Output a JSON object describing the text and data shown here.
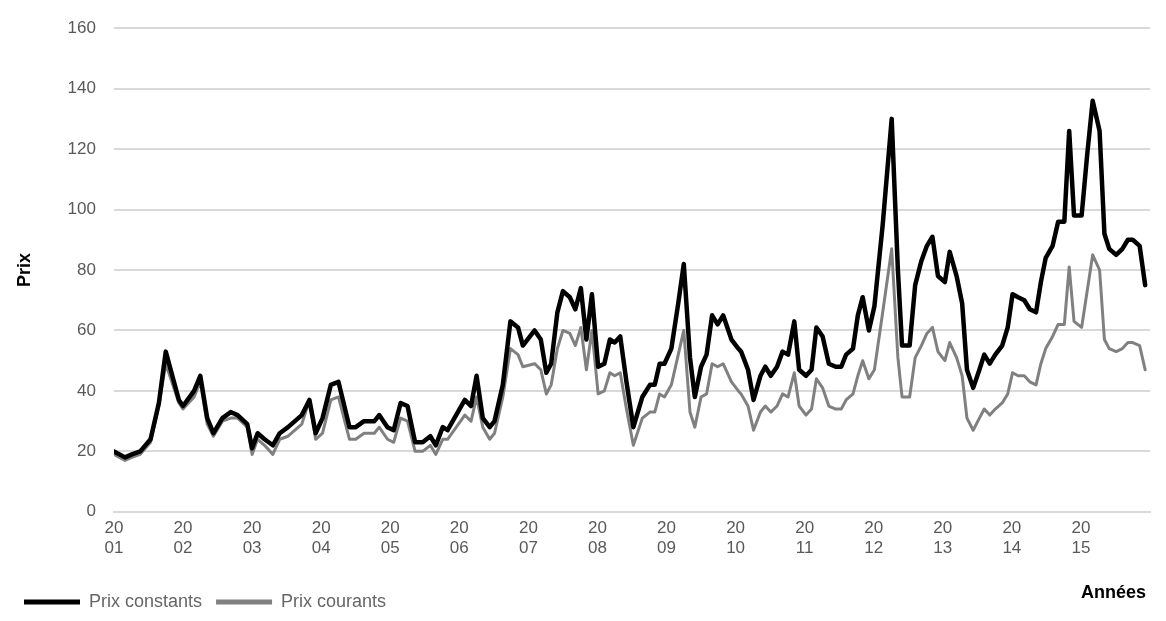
{
  "chart_data": {
    "type": "line",
    "xlabel": "Années",
    "ylabel": "Prix",
    "legend": "bottom",
    "grid": "y",
    "line_style": "solid",
    "x": [
      2001.0,
      2001.16,
      2001.26,
      2001.38,
      2001.53,
      2001.65,
      2001.75,
      2001.94,
      2002.0,
      2002.16,
      2002.25,
      2002.35,
      2002.44,
      2002.57,
      2002.69,
      2002.79,
      2002.93,
      2003.0,
      2003.08,
      2003.18,
      2003.3,
      2003.4,
      2003.52,
      2003.72,
      2003.83,
      2003.92,
      2004.02,
      2004.14,
      2004.25,
      2004.41,
      2004.5,
      2004.62,
      2004.77,
      2004.84,
      2004.96,
      2005.05,
      2005.15,
      2005.25,
      2005.36,
      2005.47,
      2005.58,
      2005.66,
      2005.76,
      2005.83,
      2006.08,
      2006.17,
      2006.25,
      2006.34,
      2006.44,
      2006.51,
      2006.63,
      2006.74,
      2006.85,
      2006.92,
      2007.09,
      2007.18,
      2007.26,
      2007.33,
      2007.42,
      2007.5,
      2007.6,
      2007.68,
      2007.76,
      2007.84,
      2007.92,
      2008.01,
      2008.1,
      2008.18,
      2008.25,
      2008.33,
      2008.42,
      2008.52,
      2008.65,
      2008.76,
      2008.83,
      2008.9,
      2008.97,
      2009.07,
      2009.17,
      2009.25,
      2009.34,
      2009.41,
      2009.5,
      2009.58,
      2009.66,
      2009.74,
      2009.82,
      2009.94,
      2010.04,
      2010.08,
      2010.18,
      2010.26,
      2010.36,
      2010.43,
      2010.51,
      2010.6,
      2010.68,
      2010.76,
      2010.85,
      2010.92,
      2011.02,
      2011.1,
      2011.17,
      2011.26,
      2011.35,
      2011.45,
      2011.53,
      2011.6,
      2011.7,
      2011.77,
      2011.84,
      2011.93,
      2012.01,
      2012.13,
      2012.26,
      2012.35,
      2012.41,
      2012.52,
      2012.6,
      2012.69,
      2012.77,
      2012.85,
      2012.93,
      2013.03,
      2013.1,
      2013.2,
      2013.28,
      2013.35,
      2013.44,
      2013.53,
      2013.6,
      2013.68,
      2013.76,
      2013.86,
      2013.94,
      2014.01,
      2014.09,
      2014.18,
      2014.26,
      2014.35,
      2014.42,
      2014.49,
      2014.59,
      2014.67,
      2014.76,
      2014.83,
      2014.9,
      2015.01,
      2015.09,
      2015.17,
      2015.27,
      2015.34,
      2015.41,
      2015.51,
      2015.6,
      2015.68,
      2015.75,
      2015.85,
      2015.93
    ],
    "xlim": [
      2001,
      2016
    ],
    "xticks": [
      {
        "value": 2001,
        "label": "2001"
      },
      {
        "value": 2002,
        "label": "2002"
      },
      {
        "value": 2003,
        "label": "2003"
      },
      {
        "value": 2004,
        "label": "2004"
      },
      {
        "value": 2005,
        "label": "2005"
      },
      {
        "value": 2006,
        "label": "2006"
      },
      {
        "value": 2007,
        "label": "2007"
      },
      {
        "value": 2008,
        "label": "2008"
      },
      {
        "value": 2009,
        "label": "2009"
      },
      {
        "value": 2010,
        "label": "2010"
      },
      {
        "value": 2011,
        "label": "2011"
      },
      {
        "value": 2012,
        "label": "2012"
      },
      {
        "value": 2013,
        "label": "2013"
      },
      {
        "value": 2014,
        "label": "2014"
      },
      {
        "value": 2015,
        "label": "2015"
      }
    ],
    "ylim": [
      0,
      160
    ],
    "yticks": [
      0,
      20,
      40,
      60,
      80,
      100,
      120,
      140,
      160
    ],
    "series": [
      {
        "name": "Prix constants",
        "color": "#000000",
        "values": [
          20,
          18,
          19,
          20,
          24,
          36,
          53,
          37,
          35,
          40,
          45,
          31,
          26,
          31,
          33,
          32,
          29,
          21,
          26,
          24,
          22,
          26,
          28,
          32,
          37,
          26,
          31,
          42,
          43,
          28,
          28,
          30,
          30,
          32,
          28,
          27,
          36,
          35,
          23,
          23,
          25,
          22,
          28,
          27,
          37,
          35,
          45,
          31,
          28,
          30,
          42,
          63,
          61,
          55,
          60,
          57,
          46,
          49,
          66,
          73,
          71,
          67,
          74,
          57,
          72,
          48,
          49,
          57,
          56,
          58,
          43,
          28,
          38,
          42,
          42,
          49,
          49,
          54,
          69,
          82,
          51,
          38,
          48,
          52,
          65,
          62,
          65,
          57,
          54,
          53,
          47,
          37,
          45,
          48,
          45,
          48,
          53,
          52,
          63,
          47,
          45,
          47,
          61,
          58,
          49,
          48,
          48,
          52,
          54,
          65,
          71,
          60,
          68,
          95,
          130,
          80,
          55,
          55,
          75,
          83,
          88,
          91,
          78,
          76,
          86,
          78,
          69,
          47,
          41,
          47,
          52,
          49,
          52,
          55,
          61,
          72,
          71,
          70,
          67,
          66,
          76,
          84,
          88,
          96,
          96,
          126,
          98,
          98,
          118,
          136,
          126,
          92,
          87,
          85,
          87,
          90,
          90,
          88,
          75
        ]
      },
      {
        "name": "Prix courants",
        "color": "#808080",
        "values": [
          19,
          17,
          18,
          19,
          23,
          35,
          49,
          36,
          34,
          38,
          43,
          29,
          25,
          30,
          31,
          31,
          28,
          19,
          24,
          22,
          19,
          24,
          25,
          29,
          37,
          24,
          26,
          37,
          38,
          24,
          24,
          26,
          26,
          28,
          24,
          23,
          31,
          30,
          20,
          20,
          22,
          19,
          24,
          24,
          32,
          30,
          38,
          28,
          24,
          26,
          38,
          54,
          52,
          48,
          49,
          47,
          39,
          42,
          54,
          60,
          59,
          55,
          61,
          47,
          60,
          39,
          40,
          46,
          45,
          46,
          34,
          22,
          31,
          33,
          33,
          39,
          38,
          42,
          52,
          60,
          33,
          28,
          38,
          39,
          49,
          48,
          49,
          43,
          40,
          39,
          35,
          27,
          33,
          35,
          33,
          35,
          39,
          38,
          46,
          35,
          32,
          34,
          44,
          41,
          35,
          34,
          34,
          37,
          39,
          45,
          50,
          44,
          47,
          66,
          87,
          51,
          38,
          38,
          51,
          55,
          59,
          61,
          53,
          50,
          56,
          51,
          45,
          31,
          27,
          31,
          34,
          32,
          34,
          36,
          39,
          46,
          45,
          45,
          43,
          42,
          49,
          54,
          58,
          62,
          62,
          81,
          63,
          61,
          73,
          85,
          80,
          57,
          54,
          53,
          54,
          56,
          56,
          55,
          47
        ]
      }
    ]
  }
}
